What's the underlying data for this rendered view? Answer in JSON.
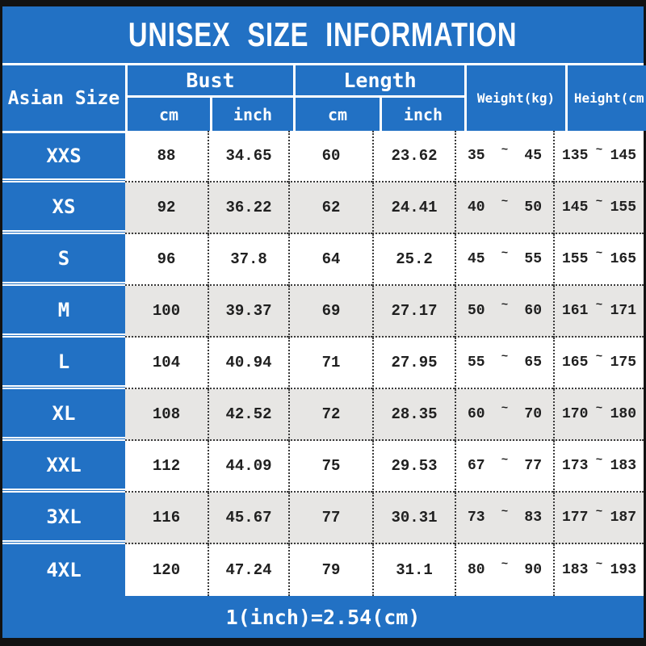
{
  "title": "UNISEX SIZE INFORMATION",
  "footer_note": "1(inch)=2.54(cm)",
  "range_separator": "~",
  "colors": {
    "banner_blue": "#2271c4",
    "row_alt_gray": "#e7e6e4",
    "frame_black": "#121212",
    "text_white": "#ffffff",
    "text_dark": "#202020"
  },
  "header": {
    "corner": "Asian Size",
    "bust_group": "Bust",
    "length_group": "Length",
    "bust_sub_cm": "cm",
    "bust_sub_inch": "inch",
    "length_sub_cm": "cm",
    "length_sub_inch": "inch",
    "weight": "Weight(kg)",
    "height": "Height(cm)"
  },
  "chart_data": {
    "type": "table",
    "title": "UNISEX SIZE INFORMATION",
    "columns": [
      "Asian Size",
      "Bust (cm)",
      "Bust (inch)",
      "Length (cm)",
      "Length (inch)",
      "Weight (kg)",
      "Height (cm)"
    ],
    "rows": [
      [
        "XXS",
        "88",
        "34.65",
        "60",
        "23.62",
        "35~45",
        "135~145"
      ],
      [
        "XS",
        "92",
        "36.22",
        "62",
        "24.41",
        "40~50",
        "145~155"
      ],
      [
        "S",
        "96",
        "37.8",
        "64",
        "25.2",
        "45~55",
        "155~165"
      ],
      [
        "M",
        "100",
        "39.37",
        "69",
        "27.17",
        "50~60",
        "161~171"
      ],
      [
        "L",
        "104",
        "40.94",
        "71",
        "27.95",
        "55~65",
        "165~175"
      ],
      [
        "XL",
        "108",
        "42.52",
        "72",
        "28.35",
        "60~70",
        "170~180"
      ],
      [
        "XXL",
        "112",
        "44.09",
        "75",
        "29.53",
        "67~77",
        "173~183"
      ],
      [
        "3XL",
        "116",
        "45.67",
        "77",
        "30.31",
        "73~83",
        "177~187"
      ],
      [
        "4XL",
        "120",
        "47.24",
        "79",
        "31.1",
        "80~90",
        "183~193"
      ]
    ],
    "footnote": "1(inch)=2.54(cm)"
  }
}
